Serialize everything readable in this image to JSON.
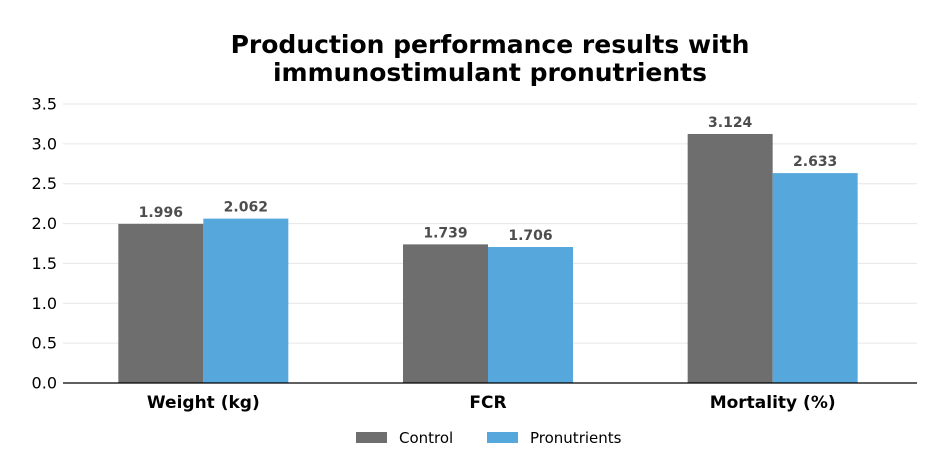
{
  "chart_data": {
    "type": "bar",
    "title": [
      "Production performance results with",
      "immunostimulant pronutrients"
    ],
    "xlabel": "",
    "ylabel": "",
    "categories": [
      "Weight (kg)",
      "FCR",
      "Mortality (%)"
    ],
    "series": [
      {
        "name": "Control",
        "color": "#6e6e6e",
        "values": [
          1.996,
          1.739,
          3.124
        ],
        "labels": [
          "1.996",
          "1.739",
          "3.124"
        ]
      },
      {
        "name": "Pronutrients",
        "color": "#56a7dc",
        "values": [
          2.062,
          1.706,
          2.633
        ],
        "labels": [
          "2.062",
          "1.706",
          "2.633"
        ]
      }
    ],
    "ylim": [
      0,
      3.5
    ],
    "yticks": [
      "0.0",
      "0.5",
      "1.0",
      "1.5",
      "2.0",
      "2.5",
      "3.0",
      "3.5"
    ],
    "grid": true,
    "legend": "bottom-center"
  }
}
